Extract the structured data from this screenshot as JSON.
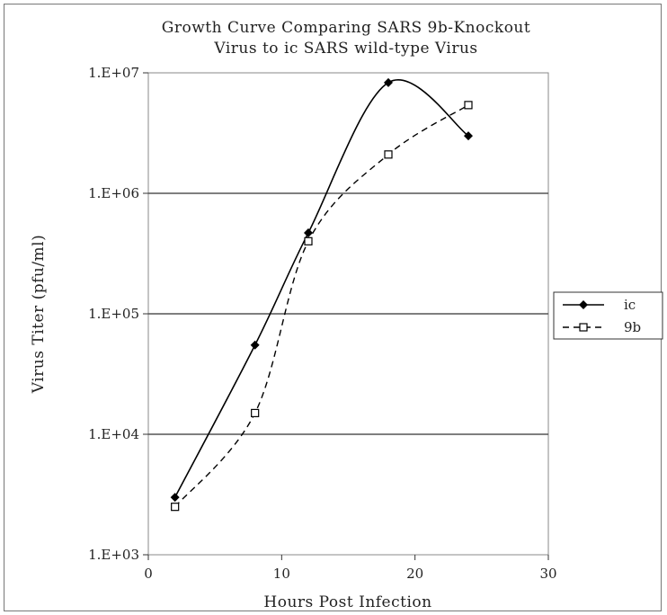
{
  "chart_data": {
    "type": "line",
    "title_line1": "Growth Curve Comparing SARS 9b-Knockout",
    "title_line2": "Virus to ic SARS wild-type Virus",
    "xlabel": "Hours Post Infection",
    "ylabel": "Virus Titer (pfu/ml)",
    "x_scale": "linear",
    "y_scale": "log",
    "xlim": [
      0,
      30
    ],
    "ylim": [
      1000,
      10000000
    ],
    "x_ticks": [
      0,
      10,
      20,
      30
    ],
    "x_tick_labels": [
      "0",
      "10",
      "20",
      "30"
    ],
    "y_ticks": [
      1000,
      10000,
      100000,
      1000000,
      10000000
    ],
    "y_tick_labels": [
      "1.E+03",
      "1.E+04",
      "1.E+05",
      "1.E+06",
      "1.E+07"
    ],
    "grid": "horizontal",
    "legend_position": "right",
    "series": [
      {
        "name": "ic",
        "marker": "filled-diamond",
        "line_style": "solid",
        "color": "#000000",
        "x": [
          2,
          8,
          12,
          18,
          24
        ],
        "y": [
          3000,
          55000,
          470000,
          8300000,
          3000000
        ]
      },
      {
        "name": "9b",
        "marker": "open-square",
        "line_style": "dashed",
        "color": "#000000",
        "x": [
          2,
          8,
          12,
          18,
          24
        ],
        "y": [
          2500,
          15000,
          400000,
          2100000,
          5400000
        ]
      }
    ]
  }
}
